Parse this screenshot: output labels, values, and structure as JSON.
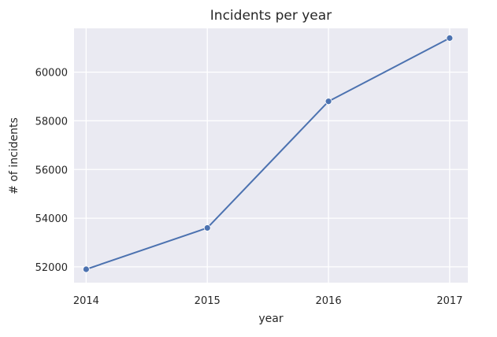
{
  "chart_data": {
    "type": "line",
    "title": "Incidents per year",
    "xlabel": "year",
    "ylabel": "# of incidents",
    "x": [
      2014,
      2015,
      2016,
      2017
    ],
    "x_tick_labels": [
      "2014",
      "2015",
      "2016",
      "2017"
    ],
    "y_ticks": [
      52000,
      54000,
      56000,
      58000,
      60000
    ],
    "y_tick_labels": [
      "52000",
      "54000",
      "56000",
      "58000",
      "60000"
    ],
    "series": [
      {
        "values": [
          51900,
          53600,
          58800,
          61400
        ],
        "color": "#4c72b0",
        "marker": "circle"
      }
    ],
    "xlim": [
      2013.9,
      2017.15
    ],
    "ylim": [
      51350,
      61800
    ],
    "grid": true,
    "background": "#eaeaf2",
    "legend": "none"
  }
}
